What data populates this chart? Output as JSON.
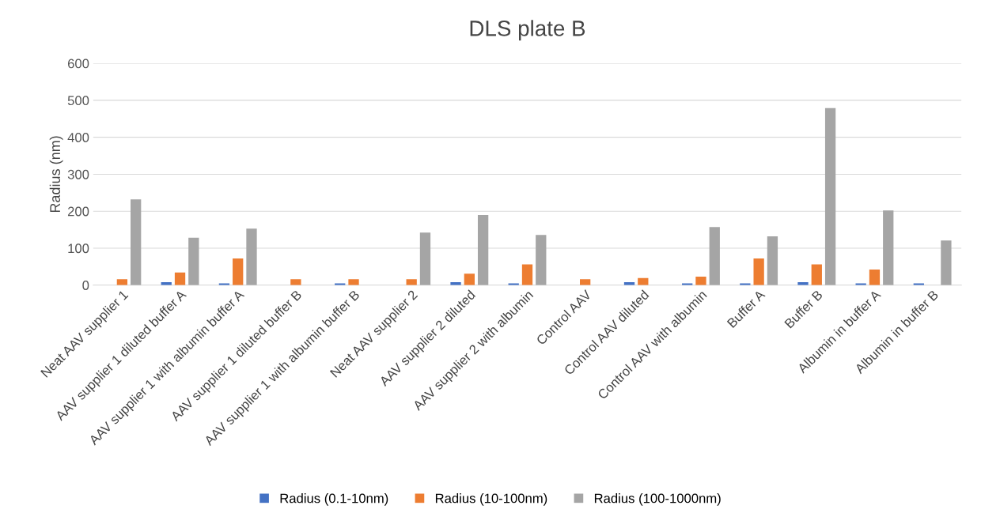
{
  "chart_data": {
    "type": "bar",
    "title": "DLS plate B",
    "ylabel": "Radius (nm)",
    "categories": [
      "Neat AAV supplier 1",
      "AAV supplier 1 diluted buffer A",
      "AAV supplier 1 with albumin buffer A",
      "AAV supplier 1 diluted buffer B",
      "AAV supplier 1 with albumin buffer B",
      "Neat AAV supplier 2",
      "AAV supplier 2 diluted",
      "AAV supplier 2 with albumin",
      "Control AAV",
      "Control AAV diluted",
      "Control AAV with albumin",
      "Buffer A",
      "Buffer B",
      "Albumin in buffer A",
      "Albumin in buffer B"
    ],
    "series": [
      {
        "name": "Radius (0.1-10nm)",
        "color": "#4472c4",
        "values": [
          null,
          8,
          5,
          null,
          5,
          null,
          8,
          5,
          null,
          8,
          5,
          5,
          8,
          5,
          5
        ]
      },
      {
        "name": "Radius (10-100nm)",
        "color": "#ed7d31",
        "values": [
          16,
          34,
          72,
          16,
          16,
          16,
          31,
          56,
          16,
          19,
          23,
          72,
          56,
          42,
          null
        ]
      },
      {
        "name": "Radius (100-1000nm)",
        "color": "#a5a5a5",
        "values": [
          232,
          128,
          153,
          null,
          null,
          142,
          190,
          136,
          null,
          null,
          157,
          132,
          479,
          202,
          121
        ]
      }
    ],
    "ylim": [
      0,
      600
    ],
    "yticks": [
      0,
      100,
      200,
      300,
      400,
      500,
      600
    ],
    "grid": "y",
    "legend": "bottom"
  }
}
